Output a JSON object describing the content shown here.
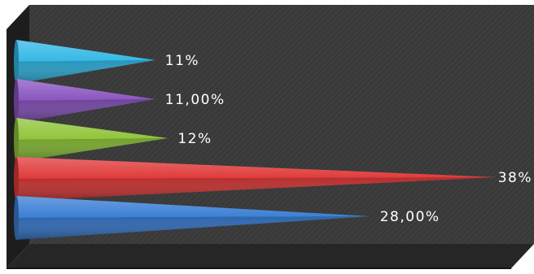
{
  "chart_data": {
    "type": "bar",
    "orientation": "horizontal",
    "style": "3d-cone",
    "grid": false,
    "legend": "none",
    "categories": [
      "",
      "",
      "",
      "",
      ""
    ],
    "values": [
      11,
      11,
      12,
      38,
      28
    ],
    "labels": [
      "11%",
      "11,00%",
      "12%",
      "38%",
      "28,00%"
    ],
    "colors": [
      "#33b8e6",
      "#8a55c0",
      "#8fc53a",
      "#e03a3a",
      "#3a7ed4"
    ],
    "xlim": [
      0,
      38
    ],
    "title": "",
    "xlabel": "",
    "ylabel": ""
  },
  "theme": {
    "background": "#3c3c3c",
    "floor": "#262626",
    "side_wall": "#1f1f1f",
    "axis": "#d9d9d9"
  }
}
